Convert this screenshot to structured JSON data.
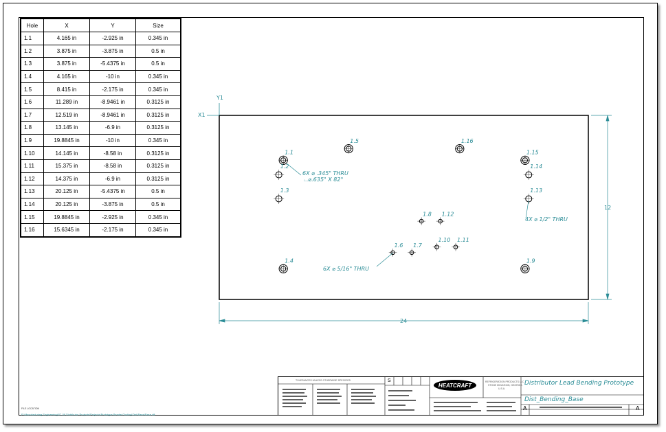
{
  "hole_table": {
    "headers": [
      "Hole",
      "X",
      "Y",
      "Size"
    ],
    "rows": [
      [
        "1.1",
        "4.165 in",
        "-2.925 in",
        "0.345 in"
      ],
      [
        "1.2",
        "3.875 in",
        "-3.875 in",
        "0.5 in"
      ],
      [
        "1.3",
        "3.875 in",
        "-5.4375 in",
        "0.5 in"
      ],
      [
        "1.4",
        "4.165 in",
        "-10 in",
        "0.345 in"
      ],
      [
        "1.5",
        "8.415 in",
        "-2.175 in",
        "0.345 in"
      ],
      [
        "1.6",
        "11.289 in",
        "-8.9461 in",
        "0.3125 in"
      ],
      [
        "1.7",
        "12.519 in",
        "-8.9461 in",
        "0.3125 in"
      ],
      [
        "1.8",
        "13.145 in",
        "-6.9 in",
        "0.3125 in"
      ],
      [
        "1.9",
        "19.8845 in",
        "-10 in",
        "0.345 in"
      ],
      [
        "1.10",
        "14.145 in",
        "-8.58 in",
        "0.3125 in"
      ],
      [
        "1.11",
        "15.375 in",
        "-8.58 in",
        "0.3125 in"
      ],
      [
        "1.12",
        "14.375 in",
        "-6.9 in",
        "0.3125 in"
      ],
      [
        "1.13",
        "20.125 in",
        "-5.4375 in",
        "0.5 in"
      ],
      [
        "1.14",
        "20.125 in",
        "-3.875 in",
        "0.5 in"
      ],
      [
        "1.15",
        "19.8845 in",
        "-2.925 in",
        "0.345 in"
      ],
      [
        "1.16",
        "15.6345 in",
        "-2.175 in",
        "0.345 in"
      ]
    ]
  },
  "drawing": {
    "axis_x_label": "X1",
    "axis_y_label": "Y1",
    "width_dim": "24",
    "height_dim": "12",
    "callout_1": "6X ⌀ .345\" THRU",
    "callout_1b": "⌴⌀.635\" X 82°",
    "callout_2": "4X ⌀ 1/2\" THRU",
    "callout_3": "6X ⌀ 5/16\" THRU",
    "hole_labels": [
      "1.1",
      "1.2",
      "1.3",
      "1.4",
      "1.5",
      "1.6",
      "1.7",
      "1.8",
      "1.9",
      "1.10",
      "1.11",
      "1.12",
      "1.13",
      "1.14",
      "1.15",
      "1.16"
    ]
  },
  "title_block": {
    "tolerance_header": "TOLERANCES UNLESS OTHERWISE SPECIFIED",
    "size_letter": "S",
    "logo_text": "HEATCRAFT",
    "company_line1": "REFRIGERATION PRODUCTS LLC",
    "company_line2": "STONE MOUNTAIN, GEORGIA",
    "company_line3": "U.S.A.",
    "title": "Distributor Lead Bending Prototype",
    "drawing_name": "Dist_Bending_Base",
    "rev_left": "A",
    "rev_right": "A"
  },
  "footer": {
    "file_location_label": "FILE LOCATION",
    "file_path": "P:\\Manufacturing Engineering\\07-09 Distributor Projects\\Projects\\Prototype Bender\\Tooling\\Dist\\Base\\Base.dft"
  },
  "colors": {
    "annotation": "#2a8c96",
    "line": "#000000"
  }
}
